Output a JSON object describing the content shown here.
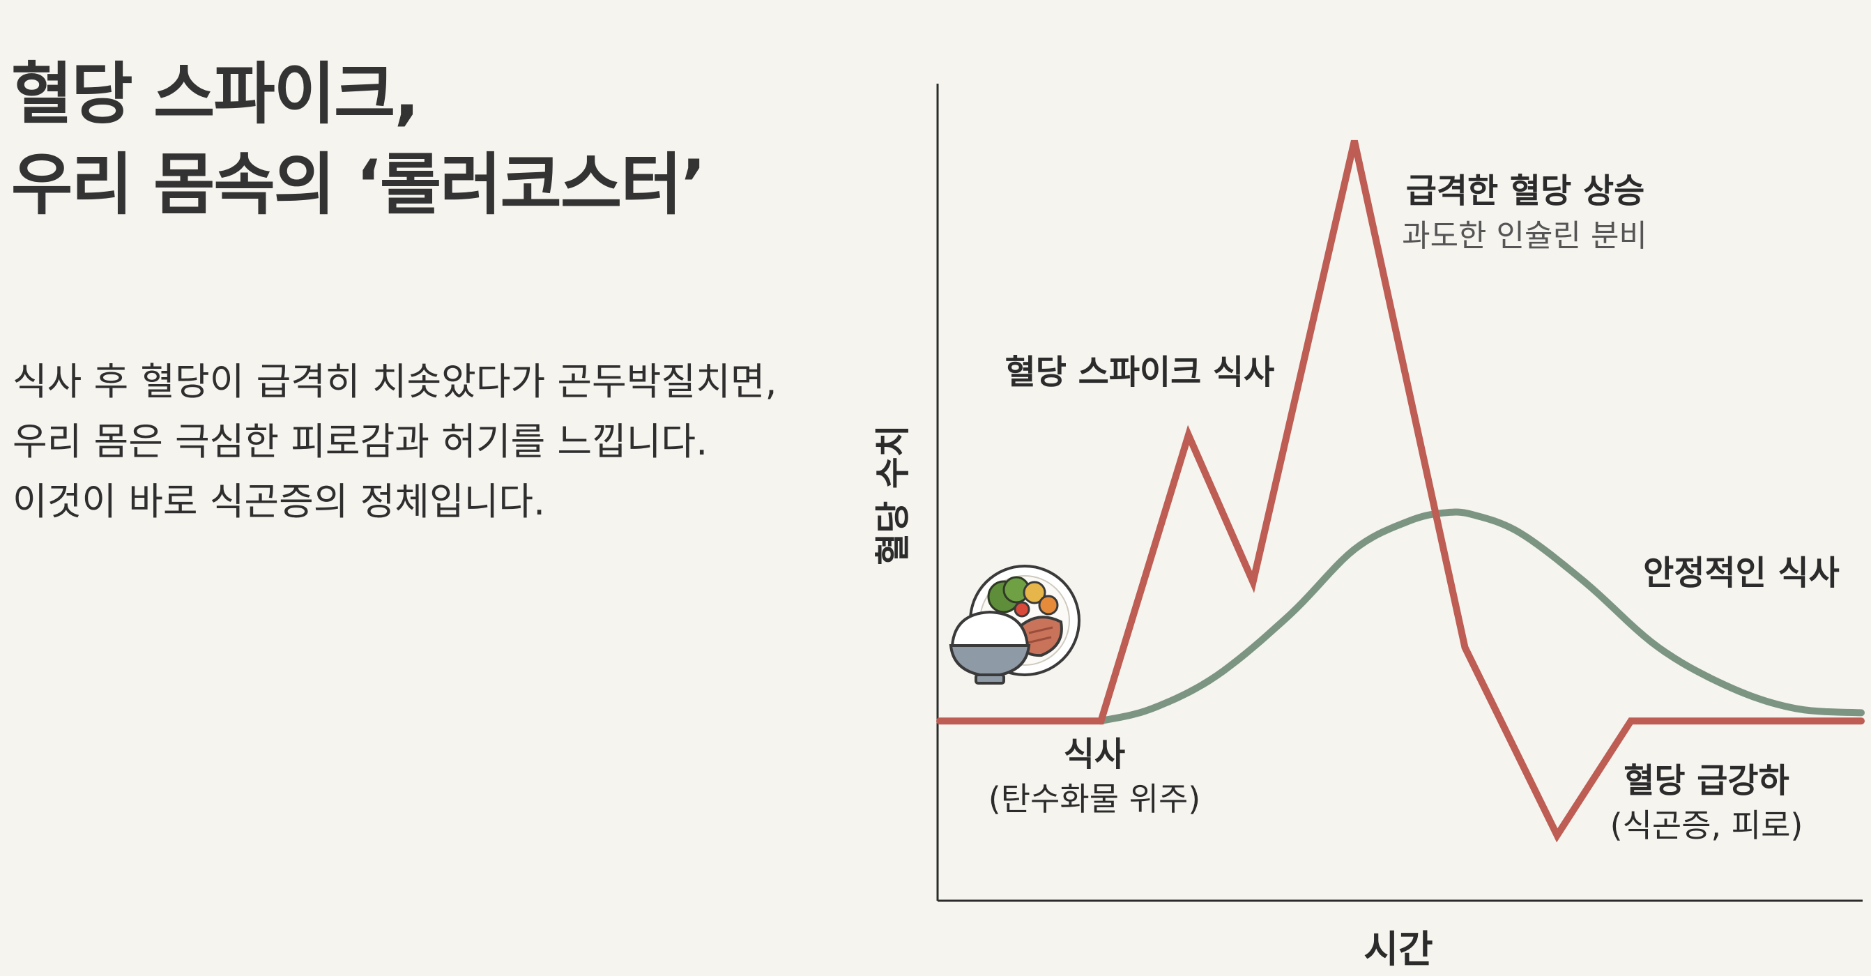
{
  "header": {
    "title_line1": "혈당 스파이크,",
    "title_line2": "우리 몸속의 ‘롤러코스터’"
  },
  "description": {
    "line1": "식사 후 혈당이 급격히 치솟았다가 곤두박질치면,",
    "line2": "우리 몸은 극심한 피로감과 허기를 느낍니다.",
    "line3": "이것이 바로 식곤증의 정체입니다."
  },
  "colors": {
    "spike_series": "#bd5d53",
    "stable_series": "#7c9582",
    "axis": "#2b2b2b",
    "background": "#f6f4ef"
  },
  "icons": {
    "meal": "meal-plate-icon",
    "rice_bowl": "rice-bowl-icon"
  },
  "chart_data": {
    "type": "line",
    "xlabel": "시간",
    "ylabel": "혈당 수치",
    "grid": false,
    "xlim": [
      0,
      100
    ],
    "ylim": [
      0,
      100
    ],
    "series": [
      {
        "name": "혈당 스파이크 식사",
        "color": "#bd5d53",
        "x": [
          0,
          17.5,
          27,
          34,
          45,
          57,
          67,
          75,
          100
        ],
        "y": [
          22,
          22,
          57,
          39,
          93,
          31,
          8,
          22,
          22
        ]
      },
      {
        "name": "안정적인 식사",
        "color": "#7c9582",
        "x": [
          17.5,
          23,
          30,
          38,
          45,
          51,
          55,
          58,
          63,
          70,
          78,
          86,
          93,
          100
        ],
        "y": [
          22,
          23.5,
          27.5,
          35,
          43,
          46.5,
          47.5,
          47.2,
          45,
          39,
          31,
          26,
          23.5,
          23
        ]
      }
    ],
    "annotations": [
      {
        "text": "혈당 스파이크 식사",
        "weight": "bold"
      },
      {
        "text": "급격한 혈당 상승",
        "weight": "bold"
      },
      {
        "text": "과도한 인슐린 분비",
        "weight": "normal"
      },
      {
        "text": "안정적인 식사",
        "weight": "bold"
      },
      {
        "text": "식사",
        "weight": "bold"
      },
      {
        "text": "(탄수화물 위주)",
        "weight": "normal"
      },
      {
        "text": "혈당 급강하",
        "weight": "bold"
      },
      {
        "text": "(식곤증, 피로)",
        "weight": "normal"
      }
    ]
  }
}
